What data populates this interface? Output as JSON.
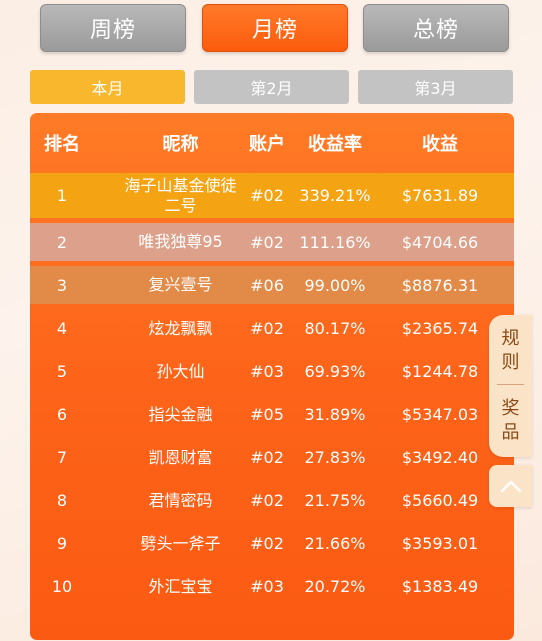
{
  "period_tabs": [
    {
      "label": "周榜",
      "active": false
    },
    {
      "label": "月榜",
      "active": true
    },
    {
      "label": "总榜",
      "active": false
    }
  ],
  "month_tabs": [
    {
      "label": "本月",
      "active": true
    },
    {
      "label": "第2月",
      "active": false
    },
    {
      "label": "第3月",
      "active": false
    }
  ],
  "table": {
    "headers": {
      "rank": "排名",
      "name": "昵称",
      "account": "账户",
      "rate": "收益率",
      "profit": "收益"
    },
    "rows": [
      {
        "rank": "1",
        "name": "海子山基金使徒二号",
        "account": "#02",
        "rate": "339.21%",
        "profit": "$7631.89"
      },
      {
        "rank": "2",
        "name": "唯我独尊95",
        "account": "#02",
        "rate": "111.16%",
        "profit": "$4704.66"
      },
      {
        "rank": "3",
        "name": "复兴壹号",
        "account": "#06",
        "rate": "99.00%",
        "profit": "$8876.31"
      },
      {
        "rank": "4",
        "name": "炫龙飘飘",
        "account": "#02",
        "rate": "80.17%",
        "profit": "$2365.74"
      },
      {
        "rank": "5",
        "name": "孙大仙",
        "account": "#03",
        "rate": "69.93%",
        "profit": "$1244.78"
      },
      {
        "rank": "6",
        "name": "指尖金融",
        "account": "#05",
        "rate": "31.89%",
        "profit": "$5347.03"
      },
      {
        "rank": "7",
        "name": "凯恩财富",
        "account": "#02",
        "rate": "27.83%",
        "profit": "$3492.40"
      },
      {
        "rank": "8",
        "name": "君情密码",
        "account": "#02",
        "rate": "21.75%",
        "profit": "$5660.49"
      },
      {
        "rank": "9",
        "name": "劈头一斧子",
        "account": "#02",
        "rate": "21.66%",
        "profit": "$3593.01"
      },
      {
        "rank": "10",
        "name": "外汇宝宝",
        "account": "#03",
        "rate": "20.72%",
        "profit": "$1383.49"
      }
    ]
  },
  "side": {
    "rules_label": "规则",
    "prize_label": "奖品",
    "up_icon": "chevron-up-icon"
  },
  "colors": {
    "accent": "#fb5c0c",
    "active_month": "#f9b72e",
    "inactive": "#c3c3c3"
  }
}
